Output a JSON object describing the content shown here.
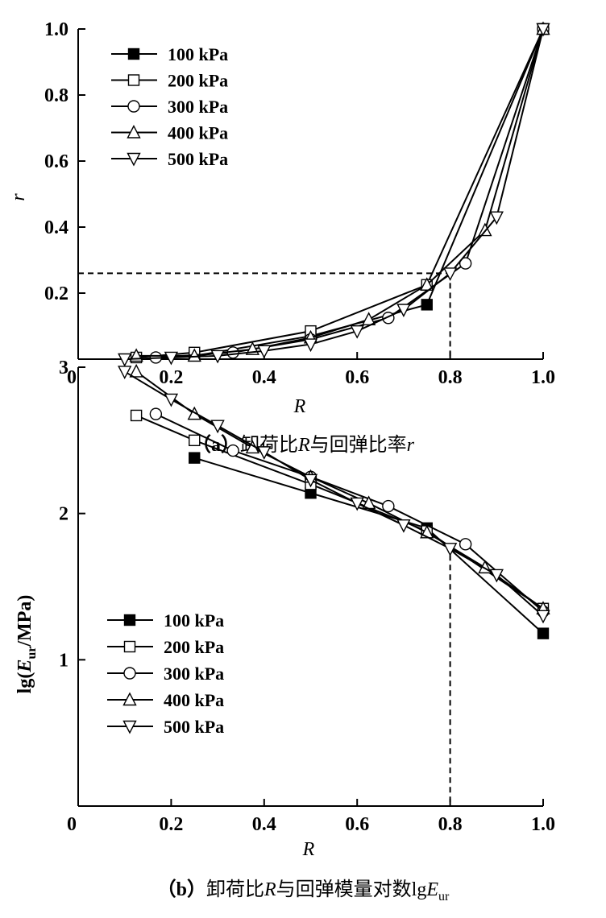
{
  "chart_data": [
    {
      "type": "line",
      "caption": {
        "prefix": "（a）",
        "text1": "卸荷比",
        "var1": "R",
        "text2": "与回弹比率",
        "var2": "r"
      },
      "xlabel": "R",
      "ylabel": "r",
      "xlim": [
        0,
        1.0
      ],
      "ylim": [
        0,
        1.0
      ],
      "xticks": [
        "0",
        "0.2",
        "0.4",
        "0.6",
        "0.8",
        "1.0"
      ],
      "yticks": [
        "0.2",
        "0.4",
        "0.6",
        "0.8",
        "1.0"
      ],
      "legend_position": "top-left",
      "grid": false,
      "reference_lines": {
        "r": 0.26,
        "R": 0.8
      },
      "series": [
        {
          "name": "100 kPa",
          "marker": "square-filled",
          "x": [
            0.25,
            0.5,
            0.75,
            1.0
          ],
          "y": [
            0.01,
            0.07,
            0.165,
            1.0
          ]
        },
        {
          "name": "200 kPa",
          "marker": "square-open",
          "x": [
            0.125,
            0.25,
            0.5,
            0.75,
            1.0
          ],
          "y": [
            0.005,
            0.02,
            0.085,
            0.225,
            1.0
          ]
        },
        {
          "name": "300 kPa",
          "marker": "circle-open",
          "x": [
            0.167,
            0.333,
            0.5,
            0.667,
            0.833,
            1.0
          ],
          "y": [
            0.005,
            0.02,
            0.06,
            0.125,
            0.29,
            1.0
          ]
        },
        {
          "name": "400 kPa",
          "marker": "triangle-up-open",
          "x": [
            0.125,
            0.25,
            0.375,
            0.5,
            0.625,
            0.75,
            0.875,
            1.0
          ],
          "y": [
            0.01,
            0.01,
            0.03,
            0.065,
            0.12,
            0.225,
            0.39,
            1.0
          ]
        },
        {
          "name": "500 kPa",
          "marker": "triangle-down-open",
          "x": [
            0.1,
            0.2,
            0.3,
            0.4,
            0.5,
            0.6,
            0.7,
            0.8,
            0.9,
            1.0
          ],
          "y": [
            0.0,
            0.005,
            0.01,
            0.025,
            0.045,
            0.085,
            0.15,
            0.26,
            0.43,
            1.0
          ]
        }
      ]
    },
    {
      "type": "line",
      "caption": {
        "prefix": "（b）",
        "text1": "卸荷比",
        "var1": "R",
        "text2": "与回弹模量对数lg",
        "var2": "E",
        "sub": "ur"
      },
      "xlabel": "R",
      "ylabel": {
        "pre": "lg(",
        "var": "E",
        "sub": "ur",
        "post": "/MPa)"
      },
      "xlim": [
        0,
        1.0
      ],
      "ylim": [
        0,
        3
      ],
      "xticks": [
        "0",
        "0.2",
        "0.4",
        "0.6",
        "0.8",
        "1.0"
      ],
      "yticks": [
        "1",
        "2",
        "3"
      ],
      "legend_position": "bottom-left",
      "grid": false,
      "reference_lines": {
        "R": 0.8
      },
      "series": [
        {
          "name": "100 kPa",
          "marker": "square-filled",
          "x": [
            0.25,
            0.5,
            0.75,
            1.0
          ],
          "y": [
            2.38,
            2.14,
            1.9,
            1.18
          ]
        },
        {
          "name": "200 kPa",
          "marker": "square-open",
          "x": [
            0.125,
            0.25,
            0.5,
            0.75,
            1.0
          ],
          "y": [
            2.67,
            2.5,
            2.2,
            1.88,
            1.35
          ]
        },
        {
          "name": "300 kPa",
          "marker": "circle-open",
          "x": [
            0.167,
            0.333,
            0.5,
            0.667,
            0.833,
            1.0
          ],
          "y": [
            2.68,
            2.43,
            2.25,
            2.05,
            1.79,
            1.33
          ]
        },
        {
          "name": "400 kPa",
          "marker": "triangle-up-open",
          "x": [
            0.125,
            0.25,
            0.375,
            0.5,
            0.625,
            0.75,
            0.875,
            1.0
          ],
          "y": [
            2.97,
            2.68,
            2.45,
            2.25,
            2.07,
            1.87,
            1.63,
            1.35
          ]
        },
        {
          "name": "500 kPa",
          "marker": "triangle-down-open",
          "x": [
            0.1,
            0.2,
            0.3,
            0.4,
            0.5,
            0.6,
            0.7,
            0.8,
            0.9,
            1.0
          ],
          "y": [
            2.97,
            2.78,
            2.6,
            2.42,
            2.23,
            2.07,
            1.92,
            1.76,
            1.58,
            1.3
          ]
        }
      ]
    }
  ]
}
